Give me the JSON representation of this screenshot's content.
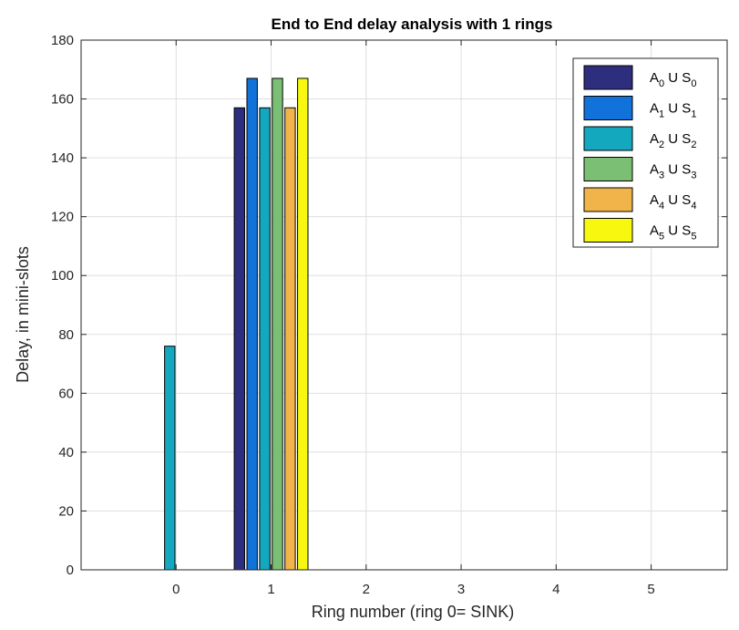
{
  "chart_data": {
    "type": "bar",
    "title": "End to End delay analysis with  1 rings",
    "xlabel": "Ring number (ring 0= SINK)",
    "ylabel": "Delay, in mini-slots",
    "categories": [
      "0",
      "1",
      "2",
      "3",
      "4",
      "5"
    ],
    "ylim": [
      0,
      180
    ],
    "xlim": [
      -1,
      5.8
    ],
    "yticks": [
      "0",
      "20",
      "40",
      "60",
      "80",
      "100",
      "120",
      "140",
      "160",
      "180"
    ],
    "grid": true,
    "legend_position": "top-right",
    "series": [
      {
        "name": "A0 U S0",
        "label_parts": [
          "A",
          "0",
          " U S",
          "0"
        ],
        "color": "#2e2e7e",
        "values": [
          0,
          157,
          0,
          0,
          0,
          0
        ]
      },
      {
        "name": "A1 U S1",
        "label_parts": [
          "A",
          "1",
          " U S",
          "1"
        ],
        "color": "#1172d9",
        "values": [
          0,
          167,
          0,
          0,
          0,
          0
        ]
      },
      {
        "name": "A2 U S2",
        "label_parts": [
          "A",
          "2",
          " U S",
          "2"
        ],
        "color": "#13a8be",
        "values": [
          76,
          157,
          0,
          0,
          0,
          0
        ]
      },
      {
        "name": "A3 U S3",
        "label_parts": [
          "A",
          "3",
          " U S",
          "3"
        ],
        "color": "#7bbf75",
        "values": [
          0,
          167,
          0,
          0,
          0,
          0
        ]
      },
      {
        "name": "A4 U S4",
        "label_parts": [
          "A",
          "4",
          " U S",
          "4"
        ],
        "color": "#f0b44a",
        "values": [
          0,
          157,
          0,
          0,
          0,
          0
        ]
      },
      {
        "name": "A5 U S5",
        "label_parts": [
          "A",
          "5",
          " U S",
          "5"
        ],
        "color": "#f7f70f",
        "values": [
          0,
          167,
          0,
          0,
          0,
          0
        ]
      }
    ]
  }
}
